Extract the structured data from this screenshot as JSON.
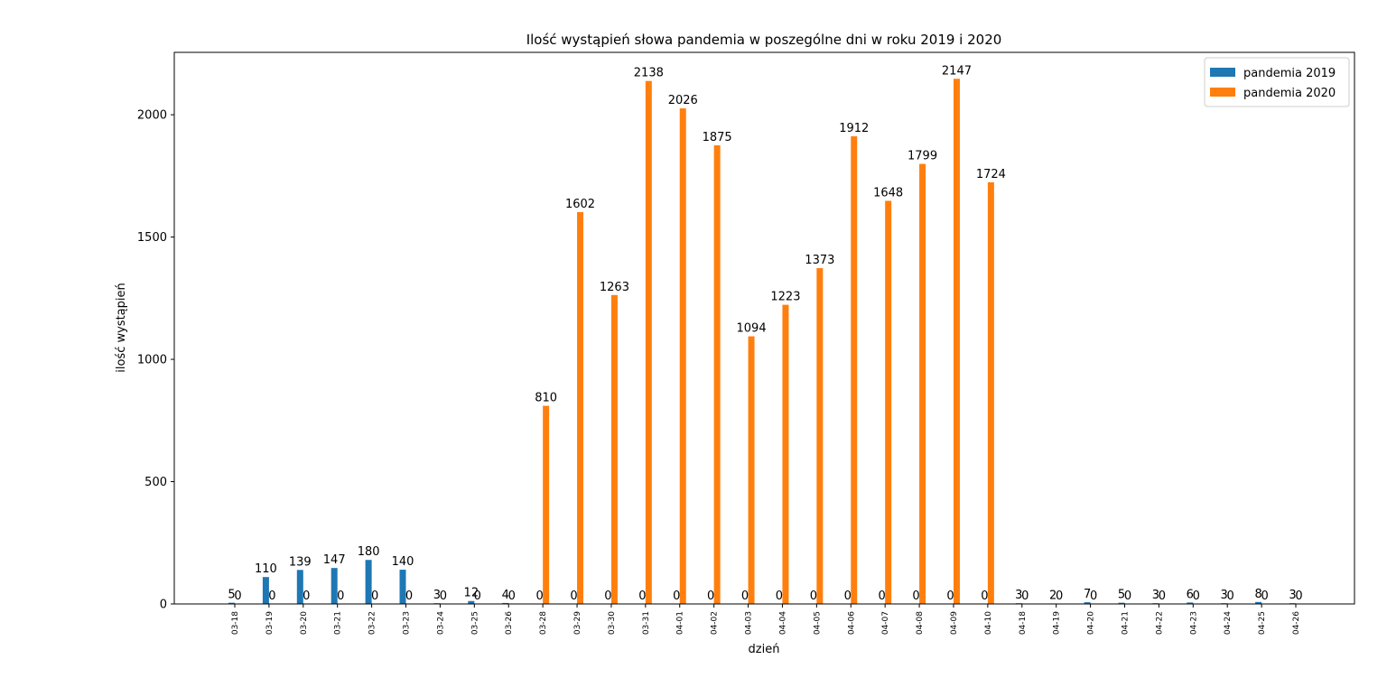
{
  "chart_data": {
    "type": "bar",
    "title": "Ilość wystąpień słowa pandemia w poszególne dni w roku 2019 i 2020",
    "xlabel": "dzień",
    "ylabel": "ilość wystąpień",
    "ylim": [
      0,
      2255
    ],
    "yticks": [
      "0",
      "500",
      "1000",
      "1500",
      "2000"
    ],
    "grid": false,
    "legend_position": "top-right",
    "categories": [
      "03-18",
      "03-19",
      "03-20",
      "03-21",
      "03-22",
      "03-23",
      "03-24",
      "03-25",
      "03-26",
      "03-28",
      "03-29",
      "03-30",
      "03-31",
      "04-01",
      "04-02",
      "04-03",
      "04-04",
      "04-05",
      "04-06",
      "04-07",
      "04-08",
      "04-09",
      "04-10",
      "04-18",
      "04-19",
      "04-20",
      "04-21",
      "04-22",
      "04-23",
      "04-24",
      "04-25",
      "04-26"
    ],
    "series": [
      {
        "name": "pandemia 2019",
        "color": "#1f77b4",
        "values": [
          5,
          110,
          139,
          147,
          180,
          140,
          3,
          12,
          4,
          0,
          0,
          0,
          0,
          0,
          0,
          0,
          0,
          0,
          0,
          0,
          0,
          0,
          0,
          3,
          2,
          7,
          5,
          3,
          6,
          3,
          8,
          3
        ]
      },
      {
        "name": "pandemia 2020",
        "color": "#ff7f0e",
        "values": [
          0,
          0,
          0,
          0,
          0,
          0,
          0,
          0,
          0,
          810,
          1602,
          1263,
          2138,
          2026,
          1875,
          1094,
          1223,
          1373,
          1912,
          1648,
          1799,
          2147,
          1724,
          0,
          0,
          0,
          0,
          0,
          0,
          0,
          0,
          0
        ]
      }
    ]
  }
}
